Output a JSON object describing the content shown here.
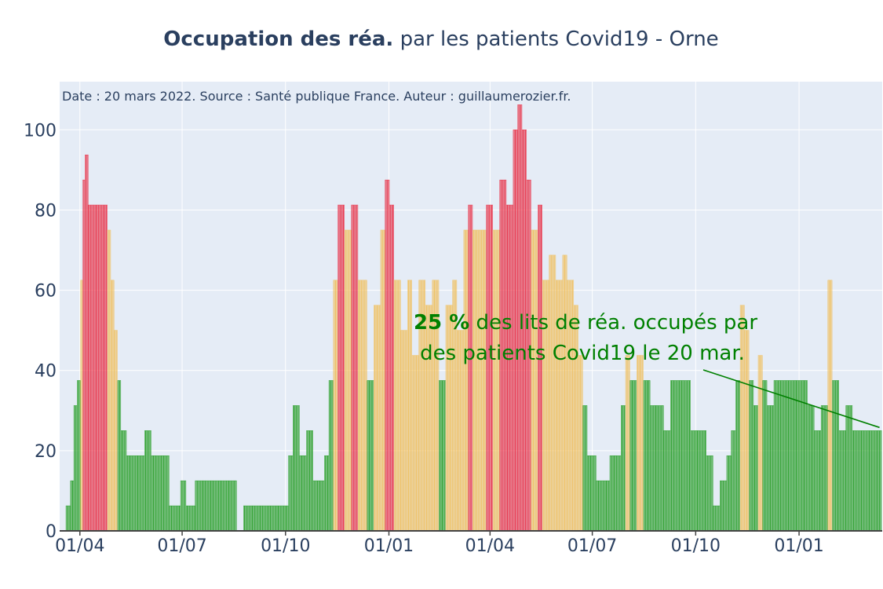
{
  "chart_data": {
    "type": "bar",
    "title_bold": "Occupation des réa.",
    "title_rest": " par les patients Covid19 - Orne",
    "source_note": "Date : 20 mars 2022. Source : Santé publique France. Auteur : guillaumerozier.fr.",
    "xlabel": "",
    "ylabel": "",
    "ylim": [
      0,
      112
    ],
    "yticks": [
      0,
      20,
      40,
      60,
      80,
      100
    ],
    "xtick_labels": [
      "01/04",
      "01/07",
      "01/10",
      "01/01",
      "01/04",
      "01/07",
      "01/10",
      "01/01"
    ],
    "xtick_day_index": [
      0,
      91,
      183,
      275,
      365,
      456,
      548,
      640
    ],
    "grid": true,
    "color_thresholds": {
      "green_max": 40,
      "orange_max": 80
    },
    "colors": {
      "green": "#2ca02c",
      "orange": "#f0c060",
      "red": "#e8344a",
      "plot_bg": "#e5ecf6",
      "grid": "#ffffff",
      "text": "#2a3f5f",
      "annotation": "#008000"
    },
    "series_keypoints": [
      [
        -12,
        6.25
      ],
      [
        -8,
        12.5
      ],
      [
        -5,
        31.25
      ],
      [
        -2,
        37.5
      ],
      [
        1,
        62.5
      ],
      [
        3,
        87.5
      ],
      [
        5,
        93.75
      ],
      [
        8,
        81.25
      ],
      [
        14,
        81.25
      ],
      [
        20,
        81.25
      ],
      [
        25,
        75
      ],
      [
        28,
        62.5
      ],
      [
        31,
        50
      ],
      [
        34,
        37.5
      ],
      [
        37,
        25
      ],
      [
        42,
        18.75
      ],
      [
        50,
        18.75
      ],
      [
        58,
        25
      ],
      [
        64,
        18.75
      ],
      [
        72,
        18.75
      ],
      [
        80,
        6.25
      ],
      [
        90,
        12.5
      ],
      [
        95,
        6.25
      ],
      [
        103,
        12.5
      ],
      [
        138,
        12.5
      ],
      [
        140,
        0
      ],
      [
        146,
        6.25
      ],
      [
        180,
        6.25
      ],
      [
        186,
        18.75
      ],
      [
        190,
        31.25
      ],
      [
        196,
        18.75
      ],
      [
        202,
        25
      ],
      [
        208,
        12.5
      ],
      [
        218,
        18.75
      ],
      [
        222,
        37.5
      ],
      [
        226,
        62.5
      ],
      [
        230,
        81.25
      ],
      [
        236,
        75
      ],
      [
        242,
        81.25
      ],
      [
        248,
        62.5
      ],
      [
        256,
        37.5
      ],
      [
        262,
        56.25
      ],
      [
        268,
        75
      ],
      [
        272,
        87.5
      ],
      [
        276,
        81.25
      ],
      [
        280,
        62.5
      ],
      [
        286,
        50
      ],
      [
        292,
        62.5
      ],
      [
        296,
        43.75
      ],
      [
        302,
        62.5
      ],
      [
        308,
        56.25
      ],
      [
        314,
        62.5
      ],
      [
        320,
        37.5
      ],
      [
        326,
        56.25
      ],
      [
        332,
        62.5
      ],
      [
        336,
        50
      ],
      [
        342,
        75
      ],
      [
        346,
        81.25
      ],
      [
        350,
        75
      ],
      [
        356,
        75
      ],
      [
        362,
        81.25
      ],
      [
        368,
        75
      ],
      [
        374,
        87.5
      ],
      [
        380,
        81.25
      ],
      [
        386,
        100
      ],
      [
        390,
        106.25
      ],
      [
        394,
        100
      ],
      [
        398,
        87.5
      ],
      [
        402,
        75
      ],
      [
        408,
        81.25
      ],
      [
        412,
        62.5
      ],
      [
        418,
        68.75
      ],
      [
        424,
        62.5
      ],
      [
        430,
        68.75
      ],
      [
        434,
        62.5
      ],
      [
        440,
        56.25
      ],
      [
        444,
        43.75
      ],
      [
        448,
        31.25
      ],
      [
        452,
        18.75
      ],
      [
        460,
        12.5
      ],
      [
        466,
        12.5
      ],
      [
        472,
        18.75
      ],
      [
        478,
        18.75
      ],
      [
        482,
        31.25
      ],
      [
        486,
        43.75
      ],
      [
        490,
        37.5
      ],
      [
        496,
        43.75
      ],
      [
        502,
        37.5
      ],
      [
        508,
        31.25
      ],
      [
        514,
        31.25
      ],
      [
        520,
        25
      ],
      [
        526,
        37.5
      ],
      [
        532,
        37.5
      ],
      [
        538,
        37.5
      ],
      [
        544,
        25
      ],
      [
        552,
        25
      ],
      [
        558,
        18.75
      ],
      [
        564,
        6.25
      ],
      [
        570,
        12.5
      ],
      [
        576,
        18.75
      ],
      [
        580,
        25
      ],
      [
        584,
        37.5
      ],
      [
        588,
        56.25
      ],
      [
        592,
        50
      ],
      [
        596,
        37.5
      ],
      [
        600,
        31.25
      ],
      [
        604,
        43.75
      ],
      [
        608,
        37.5
      ],
      [
        612,
        31.25
      ],
      [
        618,
        37.5
      ],
      [
        624,
        37.5
      ],
      [
        630,
        37.5
      ],
      [
        636,
        37.5
      ],
      [
        642,
        37.5
      ],
      [
        648,
        31.25
      ],
      [
        654,
        25
      ],
      [
        660,
        31.25
      ],
      [
        666,
        62.5
      ],
      [
        670,
        37.5
      ],
      [
        676,
        25
      ],
      [
        682,
        31.25
      ],
      [
        688,
        25
      ],
      [
        694,
        25
      ],
      [
        700,
        25
      ],
      [
        708,
        25
      ],
      [
        713,
        25
      ]
    ],
    "annotation": {
      "value_bold": "25  %",
      "line1_rest": " des lits de réa. occupés par",
      "line2": "des patients Covid19 le 20 mar."
    }
  }
}
